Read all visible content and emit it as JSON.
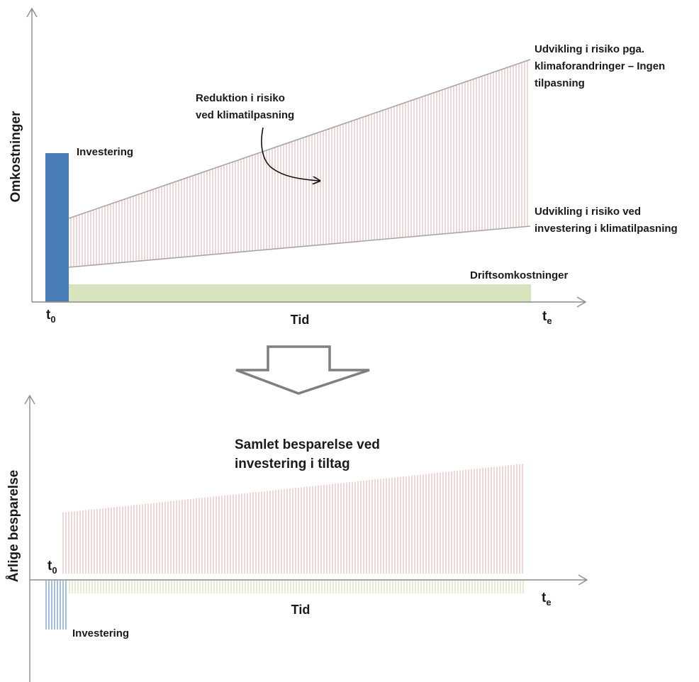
{
  "top": {
    "y_axis_label": "Omkostninger",
    "x_axis_label": "Tid",
    "t0_main": "t",
    "t0_sub": "0",
    "te_main": "t",
    "te_sub": "e",
    "investment_label": "Investering",
    "operating_costs_label": "Driftsomkostninger",
    "risk_no_adaptation_lines": [
      "Udvikling i risiko pga.",
      "klimaforandringer – Ingen",
      "tilpasning"
    ],
    "risk_with_adaptation_lines": [
      "Udvikling i risiko ved",
      "investering i klimatilpasning"
    ],
    "reduction_lines": [
      "Reduktion i risiko",
      "ved klimatilpasning"
    ]
  },
  "bottom": {
    "y_axis_label": "Årlige besparelse",
    "x_axis_label": "Tid",
    "t0_main": "t",
    "t0_sub": "0",
    "te_main": "t",
    "te_sub": "e",
    "investment_label": "Investering",
    "total_savings_lines": [
      "Samlet besparelse ved",
      "investering i tiltag"
    ]
  },
  "colors": {
    "investment_bar": "#4a7ebb",
    "operating_costs_bar": "#d7e4bd",
    "risk_hatch": "#e4a3a3",
    "risk_line": "#a6a6a6",
    "investment_hatch": "#4a7ebb",
    "operating_hatch": "#c3d69b",
    "axis": "#8c8c8c"
  }
}
